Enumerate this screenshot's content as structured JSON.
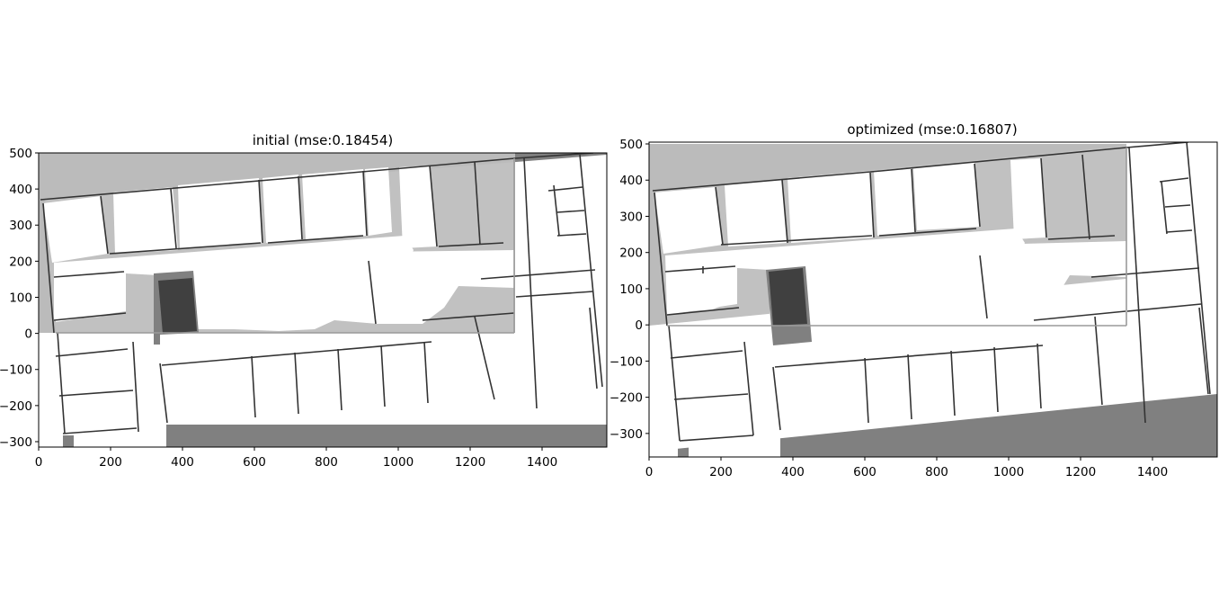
{
  "chart_data": [
    {
      "type": "heatmap",
      "title": "initial (mse:0.18454)",
      "xlabel": "",
      "ylabel": "",
      "xlim": [
        0,
        1580
      ],
      "ylim": [
        -315,
        500
      ],
      "xticks": [
        0,
        200,
        400,
        600,
        800,
        1000,
        1200,
        1400
      ],
      "yticks": [
        500,
        400,
        300,
        200,
        100,
        0,
        -100,
        -200,
        -300
      ],
      "colors": {
        "occupied": "#808080",
        "overlap": "#bebebe",
        "obstacle": "#404040",
        "free": "#ffffff",
        "wall": "#333333"
      },
      "map_rotation_deg": 0
    },
    {
      "type": "heatmap",
      "title": "optimized (mse:0.16807)",
      "xlabel": "",
      "ylabel": "",
      "xlim": [
        0,
        1580
      ],
      "ylim": [
        -365,
        505
      ],
      "xticks": [
        0,
        200,
        400,
        600,
        800,
        1000,
        1200,
        1400
      ],
      "yticks": [
        500,
        400,
        300,
        200,
        100,
        0,
        -100,
        -200,
        -300
      ],
      "colors": {
        "occupied": "#808080",
        "overlap": "#bebebe",
        "obstacle": "#404040",
        "free": "#ffffff",
        "wall": "#333333"
      },
      "map_rotation_deg": -4
    }
  ]
}
